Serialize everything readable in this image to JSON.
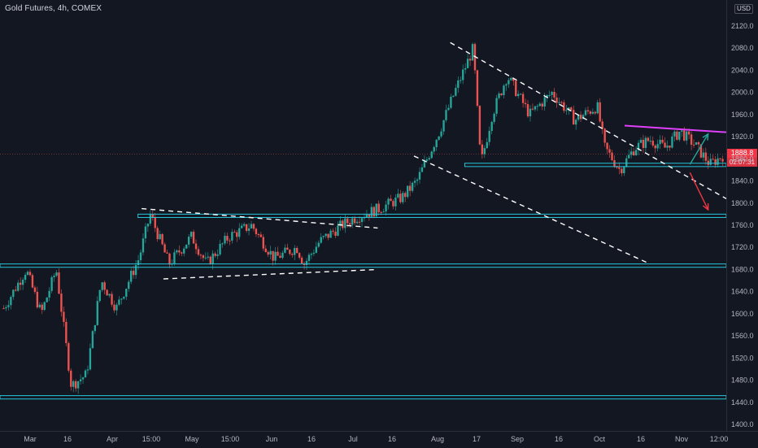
{
  "header": {
    "title": "Gold Futures, 4h, COMEX"
  },
  "price_axis": {
    "currency": "USD",
    "last_price": "1888.8",
    "countdown": "02:07:31"
  },
  "colors": {
    "background": "#131722",
    "up": "#26a69a",
    "down": "#ef5350",
    "support_lines": "#26c6da",
    "trend_dashes": "#ffffff",
    "resistance_line": "#e040fb",
    "up_arrow": "#26a69a",
    "down_arrow": "#f23645"
  },
  "chart_data": {
    "type": "candlestick",
    "symbol": "Gold Futures",
    "interval": "4h",
    "exchange": "COMEX",
    "y_ticks": [
      1400,
      1440,
      1480,
      1520,
      1560,
      1600,
      1640,
      1680,
      1720,
      1760,
      1800,
      1840,
      1880,
      1920,
      1960,
      2000,
      2040,
      2080,
      2120
    ],
    "ylim": [
      1390,
      2140
    ],
    "x_ticks": [
      "Mar",
      "16",
      "Apr",
      "15:00",
      "May",
      "15:00",
      "Jun",
      "16",
      "Jul",
      "16",
      "Aug",
      "17",
      "Sep",
      "16",
      "Oct",
      "16",
      "Nov",
      "12:00"
    ],
    "close_path": [
      {
        "x": 0,
        "y": 1610
      },
      {
        "x": 0.03,
        "y": 1680
      },
      {
        "x": 0.05,
        "y": 1600
      },
      {
        "x": 0.07,
        "y": 1680
      },
      {
        "x": 0.09,
        "y": 1470
      },
      {
        "x": 0.11,
        "y": 1490
      },
      {
        "x": 0.13,
        "y": 1660
      },
      {
        "x": 0.15,
        "y": 1610
      },
      {
        "x": 0.18,
        "y": 1700
      },
      {
        "x": 0.195,
        "y": 1780
      },
      {
        "x": 0.22,
        "y": 1690
      },
      {
        "x": 0.25,
        "y": 1740
      },
      {
        "x": 0.27,
        "y": 1690
      },
      {
        "x": 0.3,
        "y": 1740
      },
      {
        "x": 0.33,
        "y": 1760
      },
      {
        "x": 0.36,
        "y": 1700
      },
      {
        "x": 0.39,
        "y": 1720
      },
      {
        "x": 0.4,
        "y": 1690
      },
      {
        "x": 0.42,
        "y": 1730
      },
      {
        "x": 0.45,
        "y": 1760
      },
      {
        "x": 0.47,
        "y": 1775
      },
      {
        "x": 0.5,
        "y": 1790
      },
      {
        "x": 0.53,
        "y": 1810
      },
      {
        "x": 0.55,
        "y": 1840
      },
      {
        "x": 0.58,
        "y": 1930
      },
      {
        "x": 0.6,
        "y": 2000
      },
      {
        "x": 0.625,
        "y": 2080
      },
      {
        "x": 0.635,
        "y": 1870
      },
      {
        "x": 0.65,
        "y": 1960
      },
      {
        "x": 0.67,
        "y": 2030
      },
      {
        "x": 0.7,
        "y": 1960
      },
      {
        "x": 0.73,
        "y": 2000
      },
      {
        "x": 0.76,
        "y": 1950
      },
      {
        "x": 0.79,
        "y": 1975
      },
      {
        "x": 0.8,
        "y": 1900
      },
      {
        "x": 0.82,
        "y": 1860
      },
      {
        "x": 0.84,
        "y": 1900
      },
      {
        "x": 0.86,
        "y": 1915
      },
      {
        "x": 0.88,
        "y": 1900
      },
      {
        "x": 0.9,
        "y": 1930
      },
      {
        "x": 0.92,
        "y": 1905
      },
      {
        "x": 0.94,
        "y": 1870
      },
      {
        "x": 0.96,
        "y": 1888.8
      }
    ],
    "horizontal_levels": [
      {
        "from": 1446,
        "to": 1452
      },
      {
        "from": 1684,
        "to": 1690
      },
      {
        "from": 1774,
        "to": 1780
      },
      {
        "from": 1866,
        "to": 1872
      }
    ],
    "trendlines": [
      {
        "style": "dashed",
        "color": "#ffffff",
        "p1": {
          "t": 0.195,
          "p": 1790
        },
        "p2": {
          "t": 0.52,
          "p": 1755
        }
      },
      {
        "style": "dashed",
        "color": "#ffffff",
        "p1": {
          "t": 0.225,
          "p": 1663
        },
        "p2": {
          "t": 0.52,
          "p": 1680
        }
      },
      {
        "style": "dashed",
        "color": "#ffffff",
        "p1": {
          "t": 0.62,
          "p": 2090
        },
        "p2": {
          "t": 1.0,
          "p": 1808
        }
      },
      {
        "style": "dashed",
        "color": "#ffffff",
        "p1": {
          "t": 0.57,
          "p": 1885
        },
        "p2": {
          "t": 0.89,
          "p": 1693
        }
      },
      {
        "style": "solid",
        "color": "#e040fb",
        "p1": {
          "t": 0.86,
          "p": 1940
        },
        "p2": {
          "t": 1.0,
          "p": 1928
        }
      }
    ],
    "arrows": [
      {
        "direction": "up",
        "color": "#26a69a",
        "from": {
          "t": 0.95,
          "p": 1870
        },
        "to": {
          "t": 0.975,
          "p": 1925
        }
      },
      {
        "direction": "down",
        "color": "#f23645",
        "from": {
          "t": 0.95,
          "p": 1855
        },
        "to": {
          "t": 0.975,
          "p": 1788
        }
      }
    ],
    "last_price": 1888.8,
    "grid": false,
    "legend": "none"
  }
}
